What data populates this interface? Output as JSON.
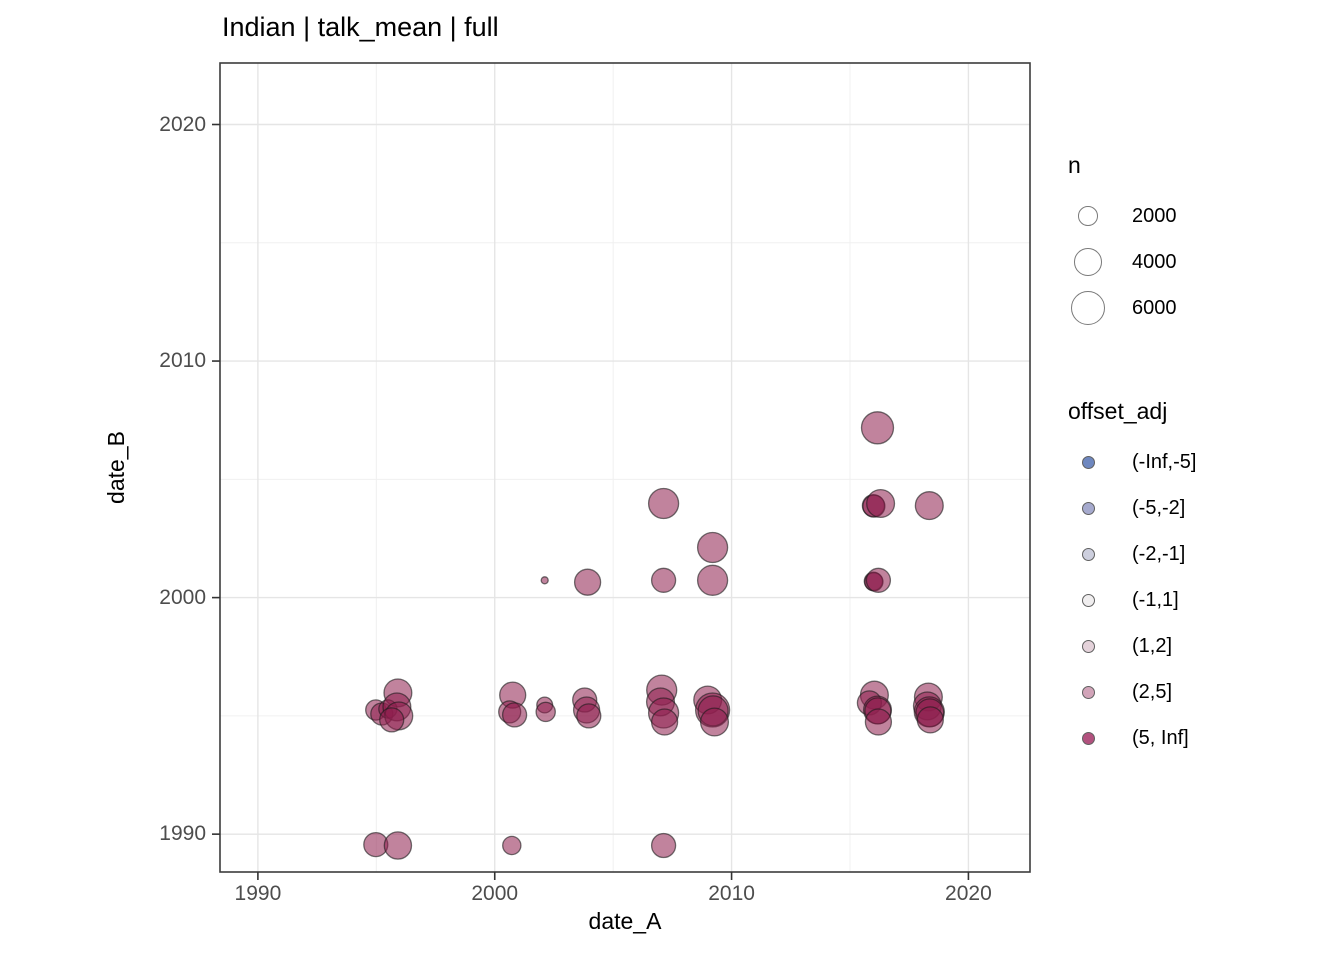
{
  "chart_data": {
    "type": "scatter",
    "title": "Indian | talk_mean | full",
    "xlabel": "date_A",
    "ylabel": "date_B",
    "x_ticks": [
      1990,
      2000,
      2010,
      2020
    ],
    "y_ticks": [
      1990,
      2000,
      2010,
      2020
    ],
    "x_minor_ticks": [
      1995,
      2005,
      2015
    ],
    "y_minor_ticks": [
      1995,
      2005,
      2015
    ],
    "xlim": [
      1988.4,
      2022.6
    ],
    "ylim": [
      1988.4,
      2022.6
    ],
    "grid": "on",
    "legend_position": "right",
    "size_legend": {
      "title": "n",
      "entries": [
        2000,
        4000,
        6000
      ]
    },
    "color_legend": {
      "title": "offset_adj",
      "entries": [
        {
          "label": "(-Inf,-5]",
          "color": "#6E87BF"
        },
        {
          "label": "(-5,-2]",
          "color": "#A6AACE"
        },
        {
          "label": "(-2,-1]",
          "color": "#CDCFDE"
        },
        {
          "label": "(-1,1]",
          "color": "#F0EEEF"
        },
        {
          "label": "(1,2]",
          "color": "#E4D2DA"
        },
        {
          "label": "(2,5]",
          "color": "#D2A4B9"
        },
        {
          "label": "(5, Inf]",
          "color": "#B2517E"
        }
      ]
    },
    "point_style": {
      "fill": "#8E1D4D",
      "fill_opacity": 0.55,
      "stroke": "#1a1a1a",
      "stroke_opacity": 0.6,
      "stroke_width": 1.3,
      "size_k": 0.22
    },
    "colors": {
      "panel_border": "#3c3c3c",
      "grid_major": "#e5e5e5",
      "grid_minor": "#f0f0f0",
      "tick_mark": "#333333",
      "tick_label": "#4d4d4d",
      "legend_key_stroke": "#7a7a7a"
    },
    "points": {
      "columns": [
        "x",
        "y",
        "n"
      ],
      "offset_adj_all": "(5, Inf]",
      "rows": [
        [
          1995.91,
          1995.97,
          4000
        ],
        [
          1994.98,
          1995.25,
          2100
        ],
        [
          1995.23,
          1995.08,
          2500
        ],
        [
          1995.49,
          1995.29,
          1700
        ],
        [
          1995.87,
          1995.38,
          4000
        ],
        [
          1995.95,
          1995.0,
          4000
        ],
        [
          1995.65,
          1994.83,
          3000
        ],
        [
          1994.98,
          1989.56,
          3000
        ],
        [
          1995.91,
          1989.52,
          3800
        ],
        [
          2000.72,
          1989.52,
          1700
        ],
        [
          2007.13,
          1989.52,
          3000
        ],
        [
          2000.76,
          1995.88,
          3500
        ],
        [
          2000.63,
          1995.17,
          2500
        ],
        [
          2000.84,
          1995.04,
          3000
        ],
        [
          2002.11,
          1995.46,
          1300
        ],
        [
          2002.15,
          1995.17,
          1900
        ],
        [
          2002.11,
          2000.73,
          250
        ],
        [
          2003.92,
          2000.65,
          3500
        ],
        [
          2003.8,
          1995.67,
          3000
        ],
        [
          2003.88,
          1995.25,
          3500
        ],
        [
          2003.97,
          1995.0,
          3000
        ],
        [
          2007.13,
          2003.98,
          4650
        ],
        [
          2007.13,
          2000.73,
          3000
        ],
        [
          2007.05,
          1996.09,
          4650
        ],
        [
          2007.0,
          1995.59,
          4000
        ],
        [
          2007.13,
          1995.12,
          4650
        ],
        [
          2007.17,
          1994.74,
          3500
        ],
        [
          2009.2,
          2002.12,
          4650
        ],
        [
          2009.2,
          2000.73,
          4650
        ],
        [
          2008.99,
          1995.67,
          4000
        ],
        [
          2009.2,
          1995.25,
          6000
        ],
        [
          2009.22,
          1995.21,
          4650
        ],
        [
          2009.28,
          1994.74,
          4000
        ],
        [
          2016.16,
          2007.18,
          5300
        ],
        [
          2015.99,
          2003.89,
          2500
        ],
        [
          2016.01,
          2003.87,
          2500
        ],
        [
          2016.29,
          2003.98,
          4000
        ],
        [
          2015.99,
          2000.69,
          1700
        ],
        [
          2016.01,
          2000.67,
          1700
        ],
        [
          2016.2,
          2000.73,
          3000
        ],
        [
          2016.03,
          1995.88,
          4000
        ],
        [
          2015.82,
          1995.55,
          3000
        ],
        [
          2016.16,
          1995.25,
          4000
        ],
        [
          2016.18,
          1995.21,
          3500
        ],
        [
          2016.2,
          1994.74,
          3500
        ],
        [
          2018.35,
          2003.89,
          4000
        ],
        [
          2018.31,
          1995.8,
          4000
        ],
        [
          2018.27,
          1995.42,
          4000
        ],
        [
          2018.35,
          1995.17,
          4650
        ],
        [
          2018.37,
          1995.13,
          4000
        ],
        [
          2018.39,
          1994.83,
          3500
        ]
      ]
    }
  }
}
